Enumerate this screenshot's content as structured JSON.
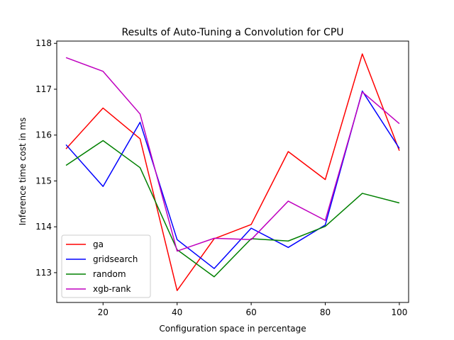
{
  "chart_data": {
    "type": "line",
    "title": "Results of Auto-Tuning a Convolution for CPU",
    "xlabel": "Configuration space in percentage",
    "ylabel": "Inference time cost in ms",
    "xlim": [
      7.5,
      102.5
    ],
    "ylim": [
      112.35,
      118.05
    ],
    "xticks": [
      20,
      40,
      60,
      80,
      100
    ],
    "yticks": [
      113,
      114,
      115,
      116,
      117,
      118
    ],
    "grid": false,
    "legend_position": "lower left",
    "x": [
      10,
      20,
      30,
      40,
      50,
      60,
      70,
      80,
      90,
      100
    ],
    "series": [
      {
        "name": "ga",
        "color": "#ff0000",
        "values": [
          115.7,
          116.59,
          115.92,
          112.61,
          113.74,
          114.05,
          115.64,
          115.03,
          117.77,
          115.66
        ]
      },
      {
        "name": "gridsearch",
        "color": "#0000ff",
        "values": [
          115.79,
          114.88,
          116.28,
          113.72,
          113.09,
          113.97,
          113.55,
          114.04,
          116.96,
          115.71
        ]
      },
      {
        "name": "random",
        "color": "#008000",
        "values": [
          115.34,
          115.88,
          115.29,
          113.5,
          112.91,
          113.74,
          113.69,
          114.01,
          114.73,
          114.52
        ]
      },
      {
        "name": "xgb-rank",
        "color": "#bf00bf",
        "values": [
          117.69,
          117.39,
          116.46,
          113.47,
          113.75,
          113.72,
          114.56,
          114.14,
          116.94,
          116.25
        ]
      }
    ]
  }
}
